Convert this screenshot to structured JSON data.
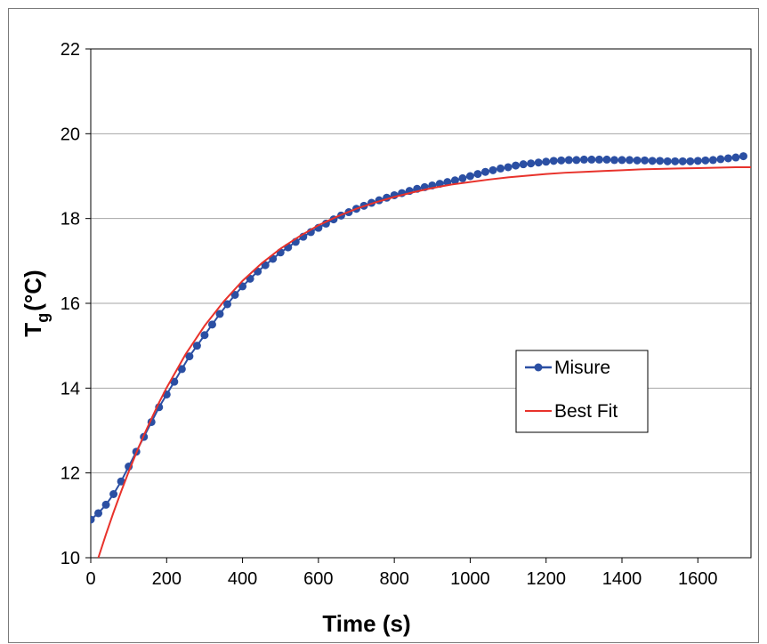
{
  "chart_data": {
    "type": "line",
    "xlabel": "Time (s)",
    "ylabel_main": "T",
    "ylabel_subscript": "g",
    "ylabel_unit": "(°C)",
    "xlim": [
      0,
      1740
    ],
    "ylim": [
      10,
      22
    ],
    "xticks": [
      0,
      200,
      400,
      600,
      800,
      1000,
      1200,
      1400,
      1600
    ],
    "yticks": [
      10,
      12,
      14,
      16,
      18,
      20,
      22
    ],
    "grid": "horizontal",
    "legend_position": "center-right",
    "series": [
      {
        "name": "Misure",
        "color": "#2b4fa3",
        "marker": "circle",
        "x": [
          0,
          20,
          40,
          60,
          80,
          100,
          120,
          140,
          160,
          180,
          200,
          220,
          240,
          260,
          280,
          300,
          320,
          340,
          360,
          380,
          400,
          420,
          440,
          460,
          480,
          500,
          520,
          540,
          560,
          580,
          600,
          620,
          640,
          660,
          680,
          700,
          720,
          740,
          760,
          780,
          800,
          820,
          840,
          860,
          880,
          900,
          920,
          940,
          960,
          980,
          1000,
          1020,
          1040,
          1060,
          1080,
          1100,
          1120,
          1140,
          1160,
          1180,
          1200,
          1220,
          1240,
          1260,
          1280,
          1300,
          1320,
          1340,
          1360,
          1380,
          1400,
          1420,
          1440,
          1460,
          1480,
          1500,
          1520,
          1540,
          1560,
          1580,
          1600,
          1620,
          1640,
          1660,
          1680,
          1700,
          1720
        ],
        "y": [
          10.9,
          11.05,
          11.25,
          11.5,
          11.8,
          12.15,
          12.5,
          12.85,
          13.2,
          13.55,
          13.85,
          14.15,
          14.45,
          14.75,
          15.0,
          15.25,
          15.5,
          15.75,
          15.98,
          16.2,
          16.4,
          16.58,
          16.75,
          16.9,
          17.05,
          17.2,
          17.32,
          17.45,
          17.57,
          17.68,
          17.78,
          17.88,
          17.98,
          18.07,
          18.15,
          18.23,
          18.3,
          18.37,
          18.43,
          18.49,
          18.55,
          18.6,
          18.65,
          18.7,
          18.74,
          18.78,
          18.82,
          18.86,
          18.9,
          18.95,
          19.0,
          19.05,
          19.1,
          19.14,
          19.18,
          19.21,
          19.25,
          19.28,
          19.3,
          19.32,
          19.34,
          19.36,
          19.37,
          19.38,
          19.38,
          19.39,
          19.39,
          19.39,
          19.39,
          19.38,
          19.38,
          19.38,
          19.37,
          19.37,
          19.36,
          19.36,
          19.35,
          19.35,
          19.35,
          19.35,
          19.36,
          19.37,
          19.38,
          19.4,
          19.42,
          19.44,
          19.47
        ]
      },
      {
        "name": "Best Fit",
        "color": "#e8322b",
        "marker": "none",
        "x": [
          20,
          40,
          60,
          80,
          100,
          120,
          140,
          160,
          180,
          200,
          250,
          300,
          350,
          400,
          450,
          500,
          550,
          600,
          650,
          700,
          750,
          800,
          850,
          900,
          950,
          1000,
          1050,
          1100,
          1150,
          1200,
          1250,
          1300,
          1350,
          1400,
          1450,
          1500,
          1550,
          1600,
          1650,
          1700,
          1740
        ],
        "y": [
          10.0,
          10.55,
          11.07,
          11.56,
          12.03,
          12.47,
          12.89,
          13.28,
          13.66,
          14.01,
          14.8,
          15.47,
          16.04,
          16.53,
          16.94,
          17.29,
          17.58,
          17.84,
          18.05,
          18.23,
          18.38,
          18.51,
          18.62,
          18.72,
          18.8,
          18.86,
          18.92,
          18.97,
          19.01,
          19.05,
          19.08,
          19.1,
          19.12,
          19.14,
          19.16,
          19.17,
          19.18,
          19.19,
          19.2,
          19.21,
          19.21
        ]
      }
    ]
  }
}
